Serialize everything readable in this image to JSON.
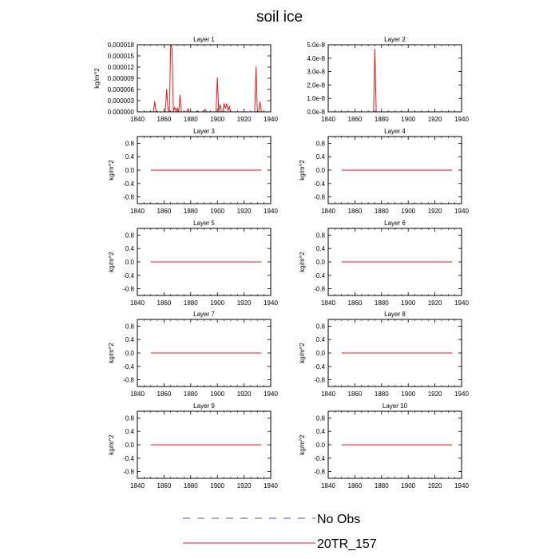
{
  "page": {
    "title": "soil ice"
  },
  "legend": {
    "entries": [
      {
        "label": "No Obs",
        "color": "#4b4bd0",
        "dash": true
      },
      {
        "label": "20TR_157",
        "color": "#e31a1c",
        "dash": false
      }
    ]
  },
  "chart_data": [
    {
      "type": "line",
      "title": "Layer 1",
      "ylabel": "kg/m^2",
      "xlim": [
        1840,
        1940
      ],
      "xticks": [
        1840,
        1860,
        1880,
        1900,
        1920,
        1940
      ],
      "xtick_labels": [
        "1840",
        "1860",
        "1880",
        "1900",
        "1920",
        "1940"
      ],
      "ylim": [
        0,
        1.8e-05
      ],
      "yticks": [
        0,
        3e-06,
        6e-06,
        9e-06,
        1.2e-05,
        1.5e-05,
        1.8e-05
      ],
      "ytick_labels": [
        "0.000000",
        "0.000003",
        "0.000006",
        "0.000009",
        "0.000012",
        "0.000015",
        "0.000018"
      ],
      "series": [
        {
          "name": "20TR_157",
          "color": "#e31a1c",
          "x": [
            1850,
            1851,
            1852,
            1853,
            1854,
            1855,
            1856,
            1857,
            1858,
            1859,
            1860,
            1861,
            1862,
            1863,
            1864,
            1865,
            1866,
            1867,
            1868,
            1869,
            1870,
            1871,
            1872,
            1873,
            1874,
            1875,
            1876,
            1877,
            1878,
            1879,
            1880,
            1881,
            1882,
            1883,
            1884,
            1885,
            1886,
            1887,
            1888,
            1889,
            1890,
            1891,
            1892,
            1893,
            1894,
            1895,
            1896,
            1897,
            1898,
            1899,
            1900,
            1901,
            1902,
            1903,
            1904,
            1905,
            1906,
            1907,
            1908,
            1909,
            1910,
            1911,
            1912,
            1913,
            1914,
            1915,
            1916,
            1917,
            1918,
            1919,
            1920,
            1921,
            1922,
            1923,
            1924,
            1925,
            1926,
            1927,
            1928,
            1929,
            1930,
            1931,
            1932,
            1933
          ],
          "y": [
            0,
            0,
            0,
            2.8e-06,
            0,
            0,
            0,
            0,
            0,
            0,
            0,
            0,
            6.1e-06,
            5e-07,
            0,
            1.82e-05,
            1.7e-05,
            0,
            1.2e-06,
            2e-07,
            1e-06,
            0,
            4.5e-06,
            0,
            0,
            0,
            0,
            0,
            8e-07,
            0,
            0,
            0,
            0,
            0,
            0,
            2e-07,
            0,
            0,
            0,
            0,
            4e-07,
            6e-07,
            0,
            0,
            0,
            0,
            0,
            0,
            0,
            0,
            9.2e-06,
            0,
            2e-06,
            0,
            0,
            2.3e-06,
            8e-07,
            2.2e-06,
            2e-07,
            1.4e-06,
            0,
            0,
            0,
            0,
            0,
            0,
            0,
            0,
            0,
            0,
            0,
            0,
            0,
            0,
            0,
            0,
            0,
            0,
            0,
            1.21e-05,
            0,
            0,
            2.7e-06,
            0
          ]
        }
      ]
    },
    {
      "type": "line",
      "title": "Layer 2",
      "ylabel": "",
      "xlim": [
        1840,
        1940
      ],
      "xticks": [
        1840,
        1860,
        1880,
        1900,
        1920,
        1940
      ],
      "xtick_labels": [
        "1840",
        "1860",
        "1880",
        "1900",
        "1920",
        "1940"
      ],
      "ylim": [
        0,
        5e-08
      ],
      "yticks": [
        0,
        1e-08,
        2e-08,
        3e-08,
        4e-08,
        5e-08
      ],
      "ytick_labels": [
        "0.0e-8",
        "1.0e-8",
        "2.0e-8",
        "3.0e-8",
        "4.0e-8",
        "5.0e-8"
      ],
      "series": [
        {
          "name": "20TR_157",
          "color": "#e31a1c",
          "x": [
            1850,
            1874,
            1875,
            1876,
            1933
          ],
          "y": [
            0,
            0,
            4.7e-08,
            0,
            0
          ]
        }
      ]
    },
    {
      "type": "line",
      "title": "Layer 3",
      "ylabel": "kg/m^2",
      "xlim": [
        1840,
        1940
      ],
      "xticks": [
        1840,
        1860,
        1880,
        1900,
        1920,
        1940
      ],
      "xtick_labels": [
        "1840",
        "1860",
        "1880",
        "1900",
        "1920",
        "1940"
      ],
      "ylim": [
        -1,
        1
      ],
      "yticks": [
        -0.8,
        -0.4,
        0,
        0.4,
        0.8
      ],
      "ytick_labels": [
        "-0.8",
        "-0.4",
        "0.0",
        "0.4",
        "0.8"
      ],
      "series": [
        {
          "name": "20TR_157",
          "color": "#e31a1c",
          "x": [
            1850,
            1933
          ],
          "y": [
            0,
            0
          ]
        }
      ]
    },
    {
      "type": "line",
      "title": "Layer 4",
      "ylabel": "kg/m^2",
      "xlim": [
        1840,
        1940
      ],
      "xticks": [
        1840,
        1860,
        1880,
        1900,
        1920,
        1940
      ],
      "xtick_labels": [
        "1840",
        "1860",
        "1880",
        "1900",
        "1920",
        "1940"
      ],
      "ylim": [
        -1,
        1
      ],
      "yticks": [
        -0.8,
        -0.4,
        0,
        0.4,
        0.8
      ],
      "ytick_labels": [
        "-0.8",
        "-0.4",
        "0.0",
        "0.4",
        "0.8"
      ],
      "series": [
        {
          "name": "20TR_157",
          "color": "#e31a1c",
          "x": [
            1850,
            1933
          ],
          "y": [
            0,
            0
          ]
        }
      ]
    },
    {
      "type": "line",
      "title": "Layer 5",
      "ylabel": "kg/m^2",
      "xlim": [
        1840,
        1940
      ],
      "xticks": [
        1840,
        1860,
        1880,
        1900,
        1920,
        1940
      ],
      "xtick_labels": [
        "1840",
        "1860",
        "1880",
        "1900",
        "1920",
        "1940"
      ],
      "ylim": [
        -1,
        1
      ],
      "yticks": [
        -0.8,
        -0.4,
        0,
        0.4,
        0.8
      ],
      "ytick_labels": [
        "-0.8",
        "-0.4",
        "0.0",
        "0.4",
        "0.8"
      ],
      "series": [
        {
          "name": "20TR_157",
          "color": "#e31a1c",
          "x": [
            1850,
            1933
          ],
          "y": [
            0,
            0
          ]
        }
      ]
    },
    {
      "type": "line",
      "title": "Layer 6",
      "ylabel": "kg/m^2",
      "xlim": [
        1840,
        1940
      ],
      "xticks": [
        1840,
        1860,
        1880,
        1900,
        1920,
        1940
      ],
      "xtick_labels": [
        "1840",
        "1860",
        "1880",
        "1900",
        "1920",
        "1940"
      ],
      "ylim": [
        -1,
        1
      ],
      "yticks": [
        -0.8,
        -0.4,
        0,
        0.4,
        0.8
      ],
      "ytick_labels": [
        "-0.8",
        "-0.4",
        "0.0",
        "0.4",
        "0.8"
      ],
      "series": [
        {
          "name": "20TR_157",
          "color": "#e31a1c",
          "x": [
            1850,
            1933
          ],
          "y": [
            0,
            0
          ]
        }
      ]
    },
    {
      "type": "line",
      "title": "Layer 7",
      "ylabel": "kg/m^2",
      "xlim": [
        1840,
        1940
      ],
      "xticks": [
        1840,
        1860,
        1880,
        1900,
        1920,
        1940
      ],
      "xtick_labels": [
        "1840",
        "1860",
        "1880",
        "1900",
        "1920",
        "1940"
      ],
      "ylim": [
        -1,
        1
      ],
      "yticks": [
        -0.8,
        -0.4,
        0,
        0.4,
        0.8
      ],
      "ytick_labels": [
        "-0.8",
        "-0.4",
        "0.0",
        "0.4",
        "0.8"
      ],
      "series": [
        {
          "name": "20TR_157",
          "color": "#e31a1c",
          "x": [
            1850,
            1933
          ],
          "y": [
            0,
            0
          ]
        }
      ]
    },
    {
      "type": "line",
      "title": "Layer 8",
      "ylabel": "kg/m^2",
      "xlim": [
        1840,
        1940
      ],
      "xticks": [
        1840,
        1860,
        1880,
        1900,
        1920,
        1940
      ],
      "xtick_labels": [
        "1840",
        "1860",
        "1880",
        "1900",
        "1920",
        "1940"
      ],
      "ylim": [
        -1,
        1
      ],
      "yticks": [
        -0.8,
        -0.4,
        0,
        0.4,
        0.8
      ],
      "ytick_labels": [
        "-0.8",
        "-0.4",
        "0.0",
        "0.4",
        "0.8"
      ],
      "series": [
        {
          "name": "20TR_157",
          "color": "#e31a1c",
          "x": [
            1850,
            1933
          ],
          "y": [
            0,
            0
          ]
        }
      ]
    },
    {
      "type": "line",
      "title": "Layer 9",
      "ylabel": "kg/m^2",
      "xlim": [
        1840,
        1940
      ],
      "xticks": [
        1840,
        1860,
        1880,
        1900,
        1920,
        1940
      ],
      "xtick_labels": [
        "1840",
        "1860",
        "1880",
        "1900",
        "1920",
        "1940"
      ],
      "ylim": [
        -1,
        1
      ],
      "yticks": [
        -0.8,
        -0.4,
        0,
        0.4,
        0.8
      ],
      "ytick_labels": [
        "-0.8",
        "-0.4",
        "0.0",
        "0.4",
        "0.8"
      ],
      "series": [
        {
          "name": "20TR_157",
          "color": "#e31a1c",
          "x": [
            1850,
            1933
          ],
          "y": [
            0,
            0
          ]
        }
      ]
    },
    {
      "type": "line",
      "title": "Layer 10",
      "ylabel": "kg/m^2",
      "xlim": [
        1840,
        1940
      ],
      "xticks": [
        1840,
        1860,
        1880,
        1900,
        1920,
        1940
      ],
      "xtick_labels": [
        "1840",
        "1860",
        "1880",
        "1900",
        "1920",
        "1940"
      ],
      "ylim": [
        -1,
        1
      ],
      "yticks": [
        -0.8,
        -0.4,
        0,
        0.4,
        0.8
      ],
      "ytick_labels": [
        "-0.8",
        "-0.4",
        "0.0",
        "0.4",
        "0.8"
      ],
      "series": [
        {
          "name": "20TR_157",
          "color": "#e31a1c",
          "x": [
            1850,
            1933
          ],
          "y": [
            0,
            0
          ]
        }
      ]
    }
  ]
}
